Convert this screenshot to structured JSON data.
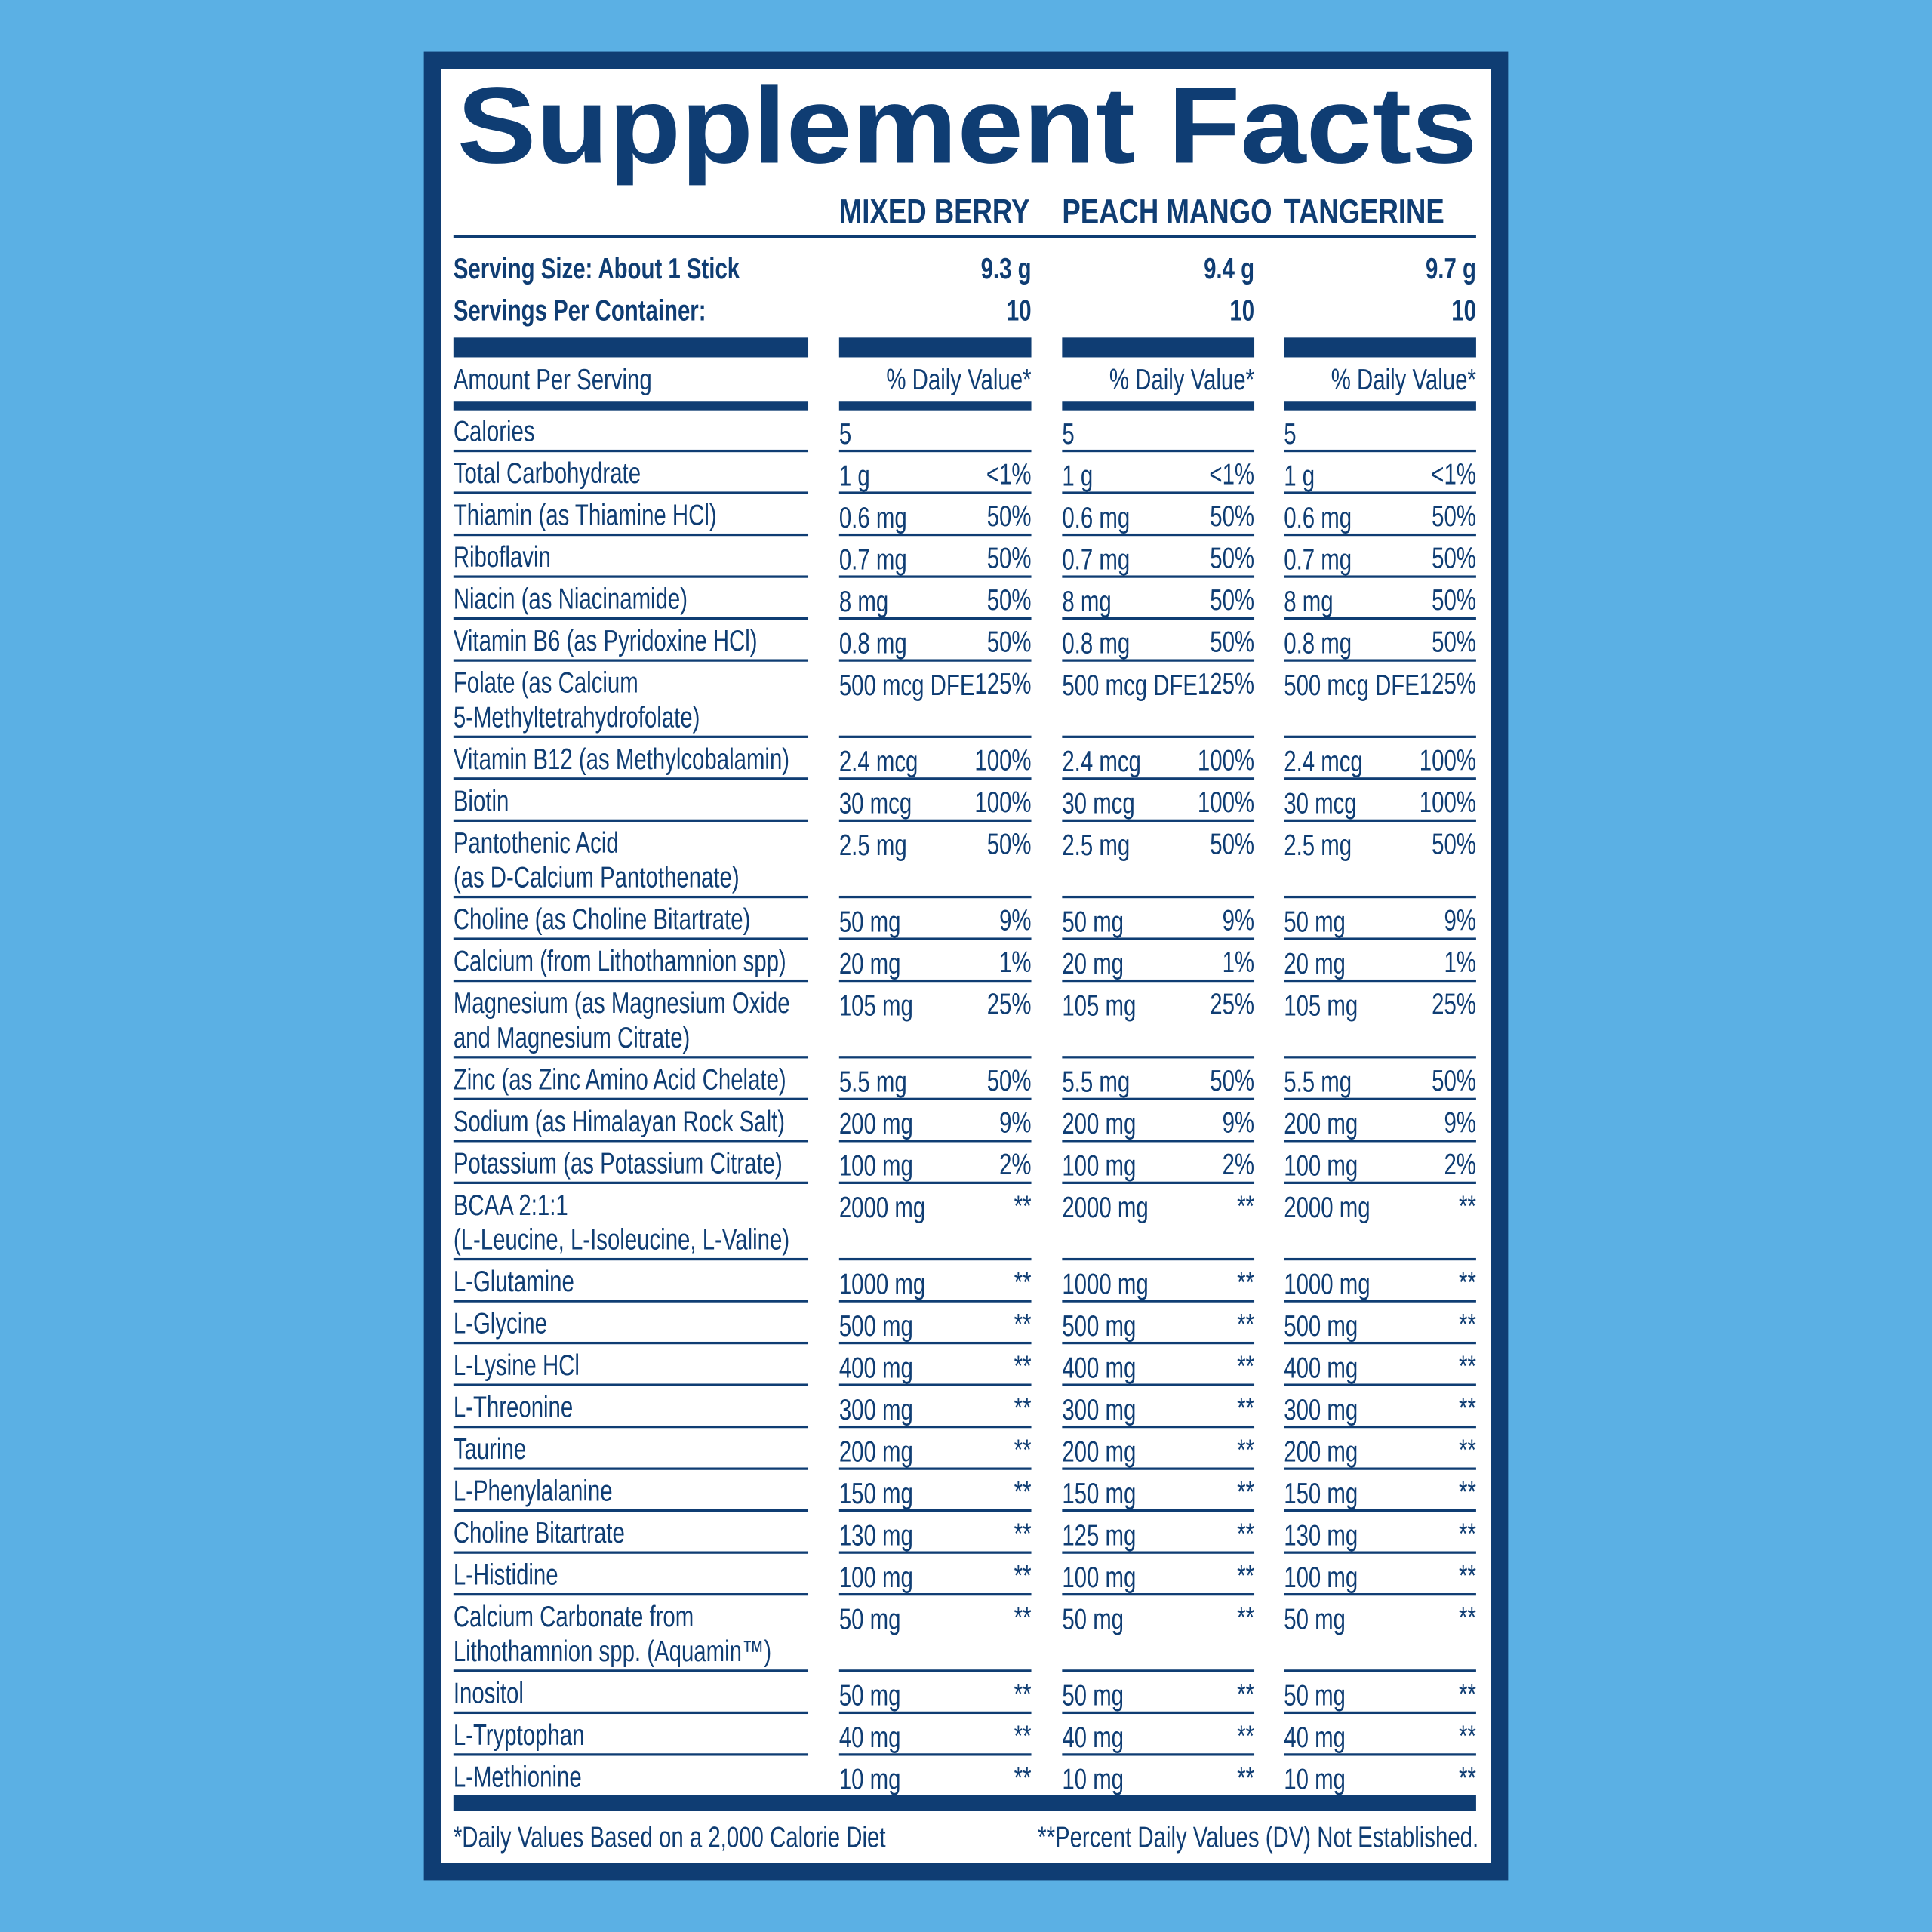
{
  "title": "Supplement Facts",
  "flavors": [
    "MIXED BERRY",
    "PEACH MANGO",
    "TANGERINE"
  ],
  "serving_size": {
    "label": "Serving Size: About 1 Stick",
    "values": [
      "9.3 g",
      "9.4 g",
      "9.7 g"
    ]
  },
  "servings_per_container": {
    "label": "Servings Per Container:",
    "values": [
      "10",
      "10",
      "10"
    ]
  },
  "amount_header": "Amount Per Serving",
  "dv_headers": [
    "% Daily Value*",
    "% Daily Value*",
    "% Daily Value*"
  ],
  "rows": [
    {
      "name": "Calories",
      "amounts": [
        "5",
        "5",
        "5"
      ]
    },
    {
      "name": "Total Carbohydrate",
      "amounts": [
        "1 g",
        "1 g",
        "1 g"
      ],
      "dv": [
        "<1%",
        "<1%",
        "<1%"
      ]
    },
    {
      "name": "Thiamin (as Thiamine HCl)",
      "amounts": [
        "0.6 mg",
        "0.6 mg",
        "0.6 mg"
      ],
      "dv": [
        "50%",
        "50%",
        "50%"
      ]
    },
    {
      "name": "Riboflavin",
      "amounts": [
        "0.7 mg",
        "0.7 mg",
        "0.7 mg"
      ],
      "dv": [
        "50%",
        "50%",
        "50%"
      ]
    },
    {
      "name": "Niacin (as Niacinamide)",
      "amounts": [
        "8 mg",
        "8 mg",
        "8 mg"
      ],
      "dv": [
        "50%",
        "50%",
        "50%"
      ]
    },
    {
      "name": "Vitamin B6 (as Pyridoxine HCl)",
      "amounts": [
        "0.8 mg",
        "0.8 mg",
        "0.8 mg"
      ],
      "dv": [
        "50%",
        "50%",
        "50%"
      ]
    },
    {
      "name": [
        "Folate (as Calcium",
        "5-Methyltetrahydrofolate)"
      ],
      "amounts": [
        "500 mcg DFE",
        "500 mcg DFE",
        "500 mcg DFE"
      ],
      "dv": [
        "125%",
        "125%",
        "125%"
      ]
    },
    {
      "name": "Vitamin B12 (as Methylcobalamin)",
      "amounts": [
        "2.4 mcg",
        "2.4 mcg",
        "2.4 mcg"
      ],
      "dv": [
        "100%",
        "100%",
        "100%"
      ]
    },
    {
      "name": "Biotin",
      "amounts": [
        "30 mcg",
        "30 mcg",
        "30 mcg"
      ],
      "dv": [
        "100%",
        "100%",
        "100%"
      ]
    },
    {
      "name": [
        "Pantothenic Acid",
        "(as D-Calcium Pantothenate)"
      ],
      "amounts": [
        "2.5 mg",
        "2.5 mg",
        "2.5 mg"
      ],
      "dv": [
        "50%",
        "50%",
        "50%"
      ]
    },
    {
      "name": "Choline (as Choline Bitartrate)",
      "amounts": [
        "50 mg",
        "50 mg",
        "50 mg"
      ],
      "dv": [
        "9%",
        "9%",
        "9%"
      ]
    },
    {
      "name": "Calcium (from Lithothamnion spp)",
      "amounts": [
        "20 mg",
        "20 mg",
        "20 mg"
      ],
      "dv": [
        "1%",
        "1%",
        "1%"
      ]
    },
    {
      "name": [
        "Magnesium (as Magnesium Oxide",
        "and Magnesium Citrate)"
      ],
      "amounts": [
        "105 mg",
        "105 mg",
        "105 mg"
      ],
      "dv": [
        "25%",
        "25%",
        "25%"
      ]
    },
    {
      "name": "Zinc (as Zinc Amino Acid Chelate)",
      "amounts": [
        "5.5 mg",
        "5.5 mg",
        "5.5 mg"
      ],
      "dv": [
        "50%",
        "50%",
        "50%"
      ]
    },
    {
      "name": "Sodium (as Himalayan Rock Salt)",
      "amounts": [
        "200 mg",
        "200 mg",
        "200 mg"
      ],
      "dv": [
        "9%",
        "9%",
        "9%"
      ]
    },
    {
      "name": "Potassium (as Potassium Citrate)",
      "amounts": [
        "100 mg",
        "100 mg",
        "100 mg"
      ],
      "dv": [
        "2%",
        "2%",
        "2%"
      ]
    },
    {
      "name": [
        "BCAA 2:1:1",
        "(L-Leucine, L-Isoleucine, L-Valine)"
      ],
      "amounts": [
        "2000 mg",
        "2000 mg",
        "2000 mg"
      ],
      "dv": [
        "**",
        "**",
        "**"
      ]
    },
    {
      "name": "L-Glutamine",
      "amounts": [
        "1000 mg",
        "1000 mg",
        "1000 mg"
      ],
      "dv": [
        "**",
        "**",
        "**"
      ]
    },
    {
      "name": "L-Glycine",
      "amounts": [
        "500 mg",
        "500 mg",
        "500 mg"
      ],
      "dv": [
        "**",
        "**",
        "**"
      ]
    },
    {
      "name": "L-Lysine HCl",
      "amounts": [
        "400 mg",
        "400 mg",
        "400 mg"
      ],
      "dv": [
        "**",
        "**",
        "**"
      ]
    },
    {
      "name": "L-Threonine",
      "amounts": [
        "300 mg",
        "300 mg",
        "300 mg"
      ],
      "dv": [
        "**",
        "**",
        "**"
      ]
    },
    {
      "name": "Taurine",
      "amounts": [
        "200 mg",
        "200 mg",
        "200 mg"
      ],
      "dv": [
        "**",
        "**",
        "**"
      ]
    },
    {
      "name": "L-Phenylalanine",
      "amounts": [
        "150 mg",
        "150 mg",
        "150 mg"
      ],
      "dv": [
        "**",
        "**",
        "**"
      ]
    },
    {
      "name": "Choline Bitartrate",
      "amounts": [
        "130 mg",
        "125 mg",
        "130 mg"
      ],
      "dv": [
        "**",
        "**",
        "**"
      ]
    },
    {
      "name": "L-Histidine",
      "amounts": [
        "100 mg",
        "100 mg",
        "100 mg"
      ],
      "dv": [
        "**",
        "**",
        "**"
      ]
    },
    {
      "name": [
        "Calcium Carbonate from",
        "Lithothamnion spp. (Aquamin™)"
      ],
      "amounts": [
        "50 mg",
        "50 mg",
        "50 mg"
      ],
      "dv": [
        "**",
        "**",
        "**"
      ]
    },
    {
      "name": "Inositol",
      "amounts": [
        "50 mg",
        "50 mg",
        "50 mg"
      ],
      "dv": [
        "**",
        "**",
        "**"
      ]
    },
    {
      "name": "L-Tryptophan",
      "amounts": [
        "40 mg",
        "40 mg",
        "40 mg"
      ],
      "dv": [
        "**",
        "**",
        "**"
      ]
    },
    {
      "name": "L-Methionine",
      "amounts": [
        "10 mg",
        "10 mg",
        "10 mg"
      ],
      "dv": [
        "**",
        "**",
        "**"
      ]
    }
  ],
  "footnotes": [
    "*Daily Values Based on a 2,000 Calorie Diet",
    "**Percent Daily Values (DV) Not Established."
  ]
}
